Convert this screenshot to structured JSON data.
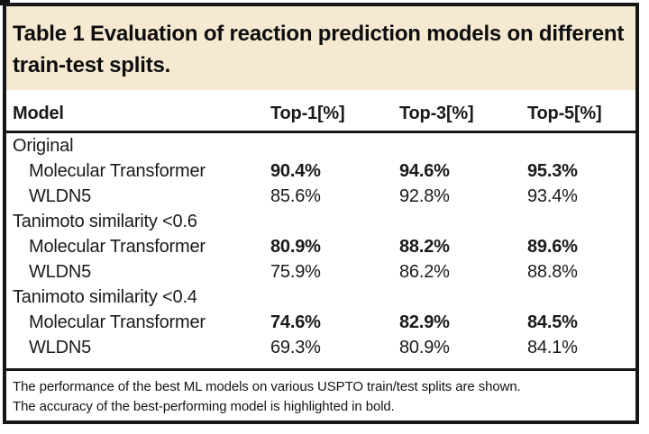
{
  "colors": {
    "caption_band_background": "#f5e9d2",
    "border": "#161616",
    "text": "#1a1a1a"
  },
  "caption": {
    "title_lines": [
      "Table 1 Evaluation of reaction prediction models on different",
      "train-test splits."
    ]
  },
  "columns": [
    "Model",
    "Top-1[%]",
    "Top-3[%]",
    "Top-5[%]"
  ],
  "table": {
    "groups": [
      {
        "label": "Original",
        "rows": [
          {
            "name": "Molecular Transformer",
            "top1": "90.4%",
            "top3": "94.6%",
            "top5": "95.3%",
            "best": true
          },
          {
            "name": "WLDN5",
            "top1": "85.6%",
            "top3": "92.8%",
            "top5": "93.4%",
            "best": false
          }
        ]
      },
      {
        "label": "Tanimoto similarity <0.6",
        "rows": [
          {
            "name": "Molecular Transformer",
            "top1": "80.9%",
            "top3": "88.2%",
            "top5": "89.6%",
            "best": true
          },
          {
            "name": "WLDN5",
            "top1": "75.9%",
            "top3": "86.2%",
            "top5": "88.8%",
            "best": false
          }
        ]
      },
      {
        "label": "Tanimoto similarity <0.4",
        "rows": [
          {
            "name": "Molecular Transformer",
            "top1": "74.6%",
            "top3": "82.9%",
            "top5": "84.5%",
            "best": true
          },
          {
            "name": "WLDN5",
            "top1": "69.3%",
            "top3": "80.9%",
            "top5": "84.1%",
            "best": false
          }
        ]
      }
    ]
  },
  "footnote_lines": [
    "The performance of the best ML models on various USPTO train/test splits are shown.",
    "The accuracy of the best-performing model is highlighted in bold."
  ]
}
